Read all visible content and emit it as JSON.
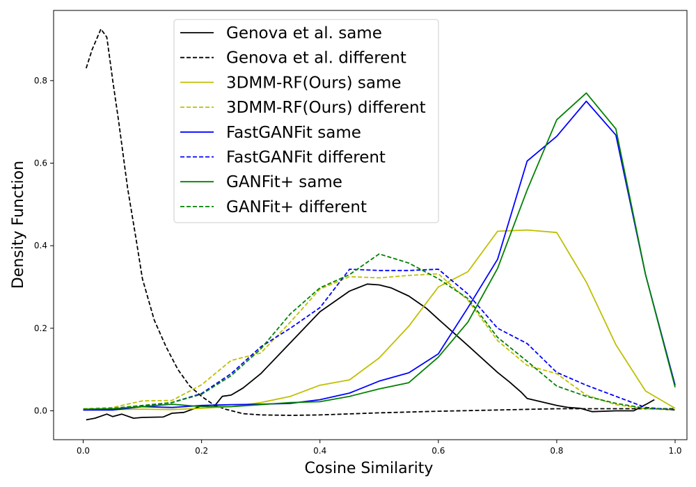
{
  "chart_data": {
    "type": "line",
    "title": "",
    "xlabel": "Cosine Similarity",
    "ylabel": "Density Function",
    "xlim": [
      -0.05,
      1.02
    ],
    "ylim": [
      -0.07,
      0.97
    ],
    "xticks": [
      0.0,
      0.2,
      0.4,
      0.6,
      0.8,
      1.0
    ],
    "xtick_labels": [
      "0.0",
      "0.2",
      "0.4",
      "0.6",
      "0.8",
      "1.0"
    ],
    "yticks": [
      0.0,
      0.2,
      0.4,
      0.6,
      0.8
    ],
    "ytick_labels": [
      "0.0",
      "0.2",
      "0.4",
      "0.6",
      "0.8"
    ],
    "grid": false,
    "legend_position": "top-center",
    "series": [
      {
        "name": "Genova et al. same",
        "color": "#000000",
        "dash": "solid",
        "x": [
          0.005,
          0.02,
          0.04,
          0.05,
          0.065,
          0.085,
          0.1,
          0.135,
          0.15,
          0.17,
          0.2,
          0.22,
          0.235,
          0.25,
          0.27,
          0.3,
          0.35,
          0.4,
          0.45,
          0.48,
          0.5,
          0.52,
          0.55,
          0.58,
          0.6,
          0.65,
          0.7,
          0.72,
          0.74,
          0.75,
          0.8,
          0.82,
          0.84,
          0.86,
          0.9,
          0.93,
          0.95,
          0.965
        ],
        "y": [
          -0.022,
          -0.018,
          -0.008,
          -0.014,
          -0.008,
          -0.018,
          -0.016,
          -0.015,
          -0.006,
          -0.004,
          0.012,
          0.008,
          0.035,
          0.038,
          0.055,
          0.09,
          0.165,
          0.24,
          0.29,
          0.307,
          0.305,
          0.298,
          0.278,
          0.248,
          0.222,
          0.158,
          0.093,
          0.07,
          0.045,
          0.03,
          0.013,
          0.008,
          0.006,
          -0.002,
          0.0,
          0.0,
          0.015,
          0.027
        ]
      },
      {
        "name": "Genova et al. different",
        "color": "#000000",
        "dash": "dashed",
        "x": [
          0.005,
          0.015,
          0.03,
          0.04,
          0.05,
          0.06,
          0.075,
          0.09,
          0.1,
          0.12,
          0.14,
          0.16,
          0.18,
          0.2,
          0.22,
          0.24,
          0.27,
          0.3,
          0.35,
          0.4,
          0.5,
          0.6,
          0.7,
          0.8,
          0.9,
          1.0
        ],
        "y": [
          0.83,
          0.875,
          0.925,
          0.905,
          0.8,
          0.7,
          0.54,
          0.41,
          0.32,
          0.22,
          0.155,
          0.1,
          0.06,
          0.035,
          0.015,
          0.004,
          -0.007,
          -0.01,
          -0.011,
          -0.01,
          -0.005,
          -0.001,
          0.002,
          0.005,
          0.005,
          0.005
        ]
      },
      {
        "name": "3DMM-RF(Ours) same",
        "color": "#bfbf00",
        "dash": "solid",
        "x": [
          0.0,
          0.05,
          0.1,
          0.15,
          0.2,
          0.25,
          0.3,
          0.35,
          0.4,
          0.45,
          0.5,
          0.55,
          0.6,
          0.65,
          0.7,
          0.75,
          0.8,
          0.85,
          0.9,
          0.95,
          1.0
        ],
        "y": [
          0.002,
          0.003,
          0.004,
          0.003,
          0.006,
          0.01,
          0.02,
          0.035,
          0.062,
          0.075,
          0.128,
          0.205,
          0.3,
          0.337,
          0.435,
          0.438,
          0.432,
          0.312,
          0.16,
          0.048,
          0.006
        ]
      },
      {
        "name": "3DMM-RF(Ours) different",
        "color": "#bfbf00",
        "dash": "dashed",
        "x": [
          0.0,
          0.05,
          0.1,
          0.15,
          0.2,
          0.25,
          0.3,
          0.35,
          0.4,
          0.45,
          0.5,
          0.55,
          0.6,
          0.65,
          0.7,
          0.75,
          0.8,
          0.85,
          0.9,
          0.95,
          1.0
        ],
        "y": [
          0.005,
          0.008,
          0.024,
          0.025,
          0.063,
          0.122,
          0.14,
          0.215,
          0.295,
          0.325,
          0.322,
          0.328,
          0.332,
          0.268,
          0.17,
          0.11,
          0.09,
          0.038,
          0.015,
          0.005,
          0.002
        ]
      },
      {
        "name": "FastGANFit same",
        "color": "#0000ff",
        "dash": "solid",
        "x": [
          0.0,
          0.05,
          0.1,
          0.15,
          0.2,
          0.25,
          0.3,
          0.35,
          0.4,
          0.45,
          0.5,
          0.55,
          0.6,
          0.65,
          0.7,
          0.75,
          0.8,
          0.85,
          0.9,
          0.95,
          1.0
        ],
        "y": [
          0.002,
          0.002,
          0.01,
          0.008,
          0.013,
          0.015,
          0.016,
          0.018,
          0.027,
          0.043,
          0.072,
          0.092,
          0.138,
          0.25,
          0.367,
          0.605,
          0.665,
          0.75,
          0.668,
          0.33,
          0.062
        ]
      },
      {
        "name": "FastGANFit different",
        "color": "#0000ff",
        "dash": "dashed",
        "x": [
          0.0,
          0.05,
          0.1,
          0.15,
          0.2,
          0.25,
          0.3,
          0.35,
          0.4,
          0.45,
          0.5,
          0.55,
          0.6,
          0.65,
          0.7,
          0.75,
          0.8,
          0.85,
          0.9,
          0.95,
          1.0
        ],
        "y": [
          0.003,
          0.005,
          0.012,
          0.02,
          0.042,
          0.09,
          0.155,
          0.2,
          0.25,
          0.343,
          0.34,
          0.34,
          0.343,
          0.283,
          0.2,
          0.163,
          0.093,
          0.062,
          0.035,
          0.008,
          0.002
        ]
      },
      {
        "name": "GANFit+ same",
        "color": "#008000",
        "dash": "solid",
        "x": [
          0.0,
          0.05,
          0.1,
          0.15,
          0.2,
          0.25,
          0.3,
          0.35,
          0.4,
          0.45,
          0.5,
          0.55,
          0.6,
          0.65,
          0.7,
          0.75,
          0.8,
          0.85,
          0.9,
          0.95,
          1.0
        ],
        "y": [
          0.004,
          0.005,
          0.01,
          0.016,
          0.01,
          0.01,
          0.015,
          0.02,
          0.022,
          0.035,
          0.053,
          0.068,
          0.13,
          0.215,
          0.345,
          0.535,
          0.705,
          0.77,
          0.683,
          0.33,
          0.057
        ]
      },
      {
        "name": "GANFit+ different",
        "color": "#008000",
        "dash": "dashed",
        "x": [
          0.0,
          0.05,
          0.1,
          0.15,
          0.2,
          0.25,
          0.3,
          0.35,
          0.4,
          0.45,
          0.5,
          0.55,
          0.6,
          0.65,
          0.7,
          0.75,
          0.8,
          0.85,
          0.9,
          0.95,
          1.0
        ],
        "y": [
          0.004,
          0.006,
          0.013,
          0.02,
          0.04,
          0.085,
          0.15,
          0.235,
          0.298,
          0.33,
          0.38,
          0.358,
          0.32,
          0.272,
          0.178,
          0.12,
          0.06,
          0.035,
          0.018,
          0.006,
          0.003
        ]
      }
    ]
  }
}
